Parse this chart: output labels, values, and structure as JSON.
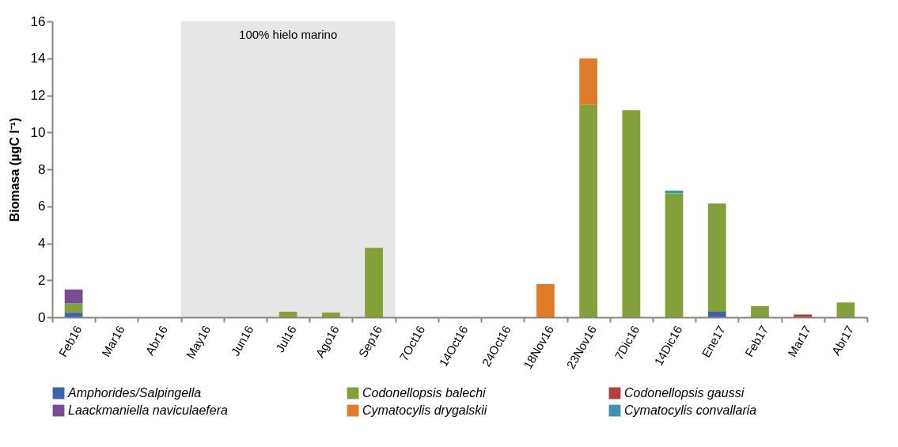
{
  "chart_data": {
    "type": "bar",
    "stacked": true,
    "ylabel": "Biomasa (µgC l⁻¹)",
    "categories": [
      "Feb16",
      "Mar16",
      "Abr16",
      "May16",
      "Jun16",
      "Jul16",
      "Ago16",
      "Sep16",
      "7Oct16",
      "14Oct16",
      "24Oct16",
      "18Nov16",
      "23Nov16",
      "7Dic16",
      "14Dic16",
      "Ene17",
      "Feb17",
      "Mar17",
      "Abr17"
    ],
    "series": [
      {
        "name": "Amphorides/Salpingella",
        "color": "#3f62ad",
        "values": [
          0.25,
          null,
          null,
          null,
          null,
          null,
          null,
          null,
          null,
          null,
          null,
          null,
          null,
          null,
          null,
          0.3,
          null,
          null,
          null
        ]
      },
      {
        "name": "Codonellopsis  balechi",
        "color": "#84a03a",
        "values": [
          0.5,
          null,
          null,
          null,
          null,
          0.3,
          0.25,
          3.75,
          null,
          null,
          null,
          null,
          11.5,
          11.2,
          6.7,
          5.85,
          0.6,
          null,
          0.8
        ]
      },
      {
        "name": "Codonellopsis gaussi",
        "color": "#b2403a",
        "values": [
          null,
          null,
          null,
          null,
          null,
          null,
          null,
          null,
          null,
          null,
          null,
          null,
          null,
          null,
          null,
          null,
          null,
          0.15,
          null
        ]
      },
      {
        "name": "Laackmaniella naviculaefera",
        "color": "#7a4b95",
        "values": [
          0.75,
          null,
          null,
          null,
          null,
          null,
          null,
          null,
          null,
          null,
          null,
          null,
          null,
          null,
          null,
          null,
          null,
          null,
          null
        ]
      },
      {
        "name": "Cymatocylis drygalskii",
        "color": "#e07b2a",
        "values": [
          null,
          null,
          null,
          null,
          null,
          null,
          null,
          null,
          null,
          null,
          null,
          1.8,
          2.5,
          null,
          null,
          null,
          null,
          null,
          null
        ]
      },
      {
        "name": "Cymatocylis convallaria",
        "color": "#3d93b0",
        "values": [
          null,
          null,
          null,
          null,
          null,
          null,
          null,
          null,
          null,
          null,
          null,
          null,
          null,
          null,
          0.15,
          null,
          null,
          null,
          null
        ]
      }
    ],
    "ylim": [
      0,
      16
    ],
    "yticks": [
      0,
      2,
      4,
      6,
      8,
      10,
      12,
      14,
      16
    ],
    "grid": false,
    "legend": "bottom",
    "bands": [
      {
        "axis": "x",
        "from": "May16",
        "to": "Sep16",
        "label": "100% hielo marino",
        "color": "#e6e6e6"
      }
    ]
  }
}
